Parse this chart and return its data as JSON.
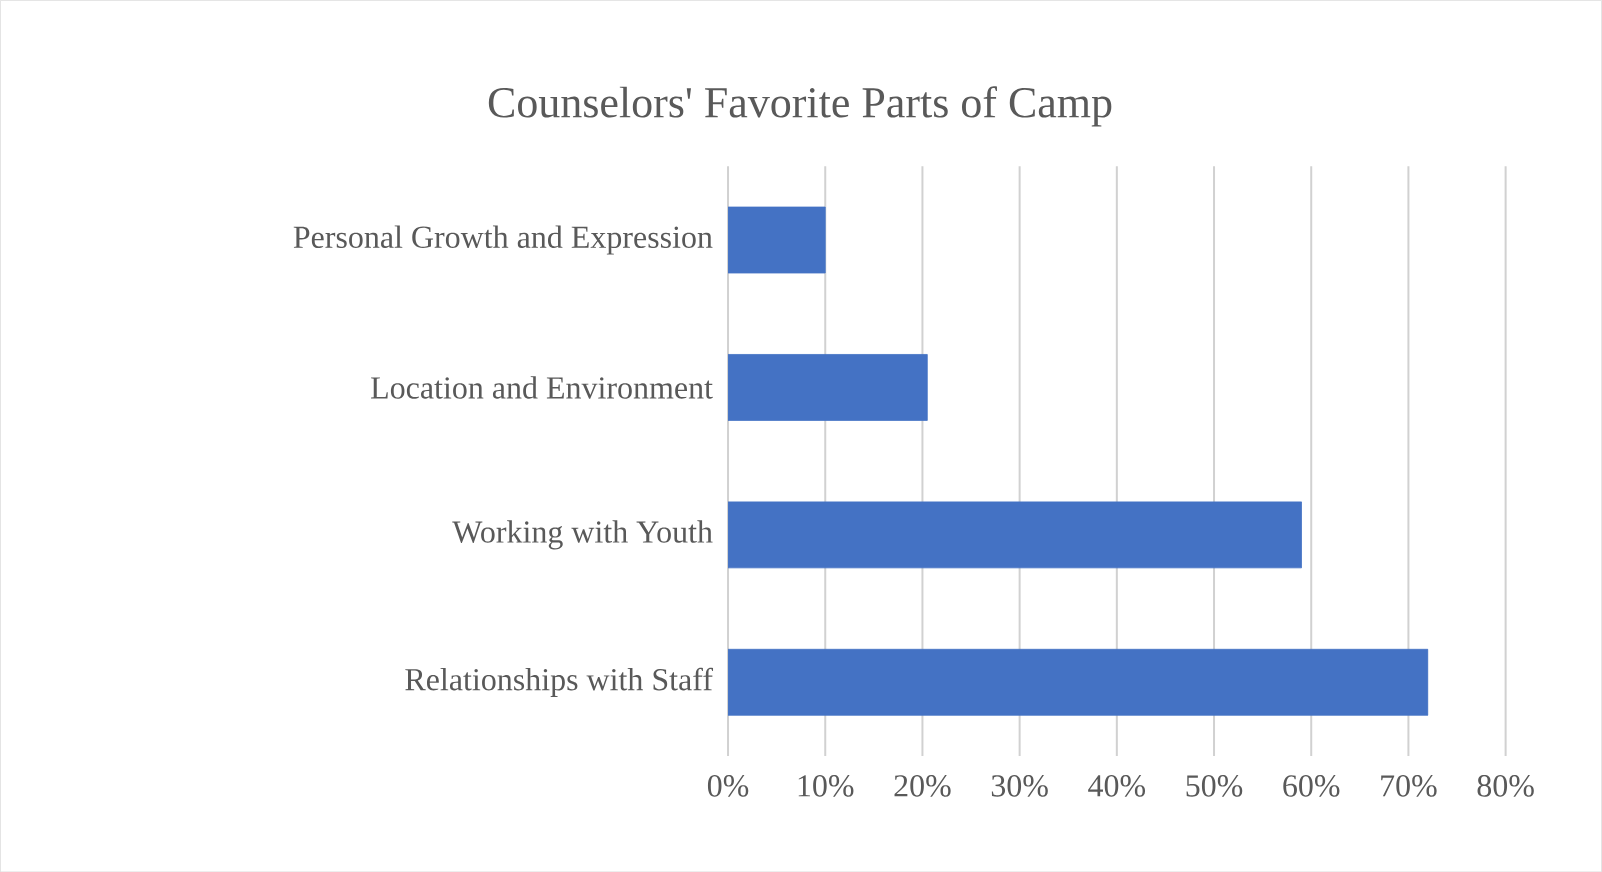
{
  "chart_data": {
    "type": "bar",
    "orientation": "horizontal",
    "title": "Counselors' Favorite Parts of Camp",
    "categories": [
      "Personal Growth and Expression",
      "Location and Environment",
      "Working with Youth",
      "Relationships with Staff"
    ],
    "values": [
      10,
      20.5,
      59,
      72
    ],
    "color": "#4472c4",
    "xlim": [
      0,
      80
    ],
    "xticks": [
      {
        "value": 0,
        "label": "0%"
      },
      {
        "value": 10,
        "label": "10%"
      },
      {
        "value": 20,
        "label": "20%"
      },
      {
        "value": 30,
        "label": "30%"
      },
      {
        "value": 40,
        "label": "40%"
      },
      {
        "value": 50,
        "label": "50%"
      },
      {
        "value": 60,
        "label": "60%"
      },
      {
        "value": 70,
        "label": "70%"
      },
      {
        "value": 80,
        "label": "80%"
      }
    ],
    "grid": "x"
  }
}
